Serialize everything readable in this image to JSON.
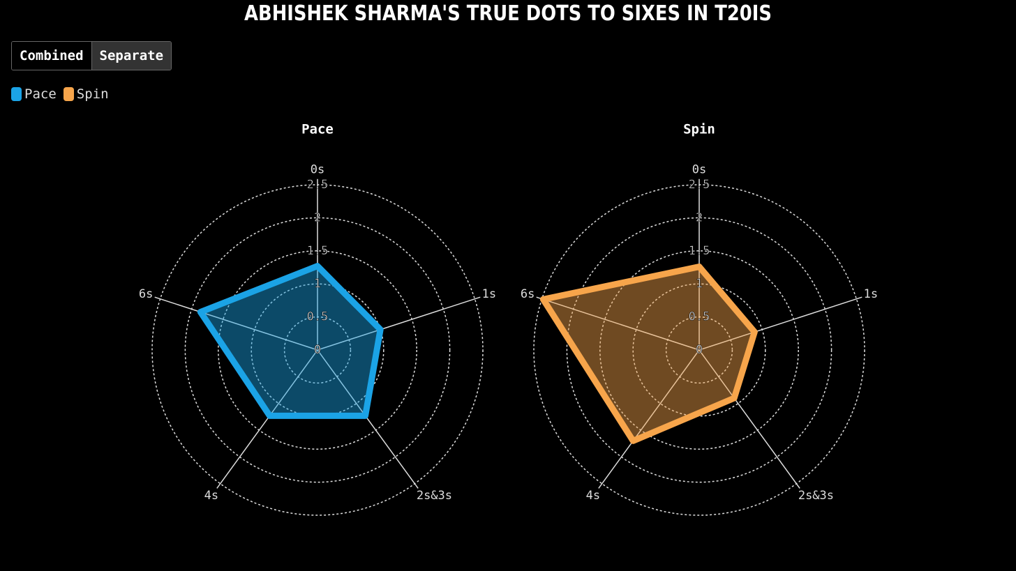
{
  "title": "ABHISHEK SHARMA'S TRUE DOTS TO SIXES IN T20IS",
  "controls": [
    "Combined",
    "Separate"
  ],
  "chart_data": [
    {
      "type": "radar",
      "title": "Pace",
      "categories": [
        "0s",
        "1s",
        "2s&3s",
        "4s",
        "6s"
      ],
      "series": [
        {
          "name": "Pace",
          "color": "#1ba3e6",
          "values": [
            1.27,
            1.0,
            1.23,
            1.23,
            1.86
          ]
        }
      ],
      "rlim": [
        0,
        2.5
      ],
      "rticks": [
        0,
        0.5,
        1,
        1.5,
        2,
        2.5
      ],
      "grid": true
    },
    {
      "type": "radar",
      "title": "Spin",
      "categories": [
        "0s",
        "1s",
        "2s&3s",
        "4s",
        "6s"
      ],
      "series": [
        {
          "name": "Spin",
          "color": "#f7a54b",
          "values": [
            1.26,
            0.88,
            0.9,
            1.7,
            2.48
          ]
        }
      ],
      "rlim": [
        0,
        2.5
      ],
      "rticks": [
        0,
        0.5,
        1,
        1.5,
        2,
        2.5
      ],
      "grid": true
    }
  ]
}
